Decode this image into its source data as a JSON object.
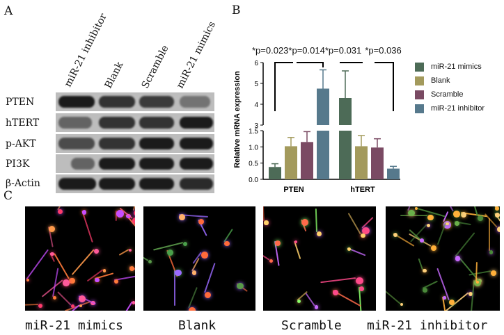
{
  "panels": {
    "a": "A",
    "b": "B",
    "c": "C"
  },
  "blot": {
    "lanes": [
      "miR-21 inhibitor",
      "Blank",
      "Scramble",
      "miR-21 mimics"
    ],
    "bands": [
      "PTEN",
      "hTERT",
      "p-AKT",
      "PI3K",
      "β-Actin"
    ]
  },
  "chart": {
    "pvalues": [
      "*p=0.023",
      "*p=0.014",
      "*p=0.031",
      "*p=0.036"
    ],
    "ylabel": "Relative mRNA expression",
    "categories": [
      "PTEN",
      "hTERT"
    ],
    "yticks_top": [
      "3",
      "4",
      "5",
      "6"
    ],
    "yticks_bottom": [
      "0.0",
      "0.5",
      "1.0",
      "1.5"
    ],
    "legend": [
      {
        "label": "miR-21 mimics",
        "color": "#4d6b57"
      },
      {
        "label": "Blank",
        "color": "#a39a5c"
      },
      {
        "label": "Scramble",
        "color": "#7a4a63"
      },
      {
        "label": "miR-21 inhibitor",
        "color": "#56798c"
      }
    ]
  },
  "chart_data": {
    "type": "bar",
    "categories": [
      "PTEN",
      "hTERT"
    ],
    "ylabel": "Relative mRNA expression",
    "y_axis_break": [
      1.5,
      3
    ],
    "series": [
      {
        "name": "miR-21 mimics",
        "values": [
          0.38,
          4.3
        ],
        "errors": [
          0.1,
          1.3
        ]
      },
      {
        "name": "Blank",
        "values": [
          1.02,
          1.02
        ],
        "errors": [
          0.27,
          0.33
        ]
      },
      {
        "name": "Scramble",
        "values": [
          1.15,
          0.98
        ],
        "errors": [
          0.32,
          0.27
        ]
      },
      {
        "name": "miR-21 inhibitor",
        "values": [
          4.75,
          0.33
        ],
        "errors": [
          0.9,
          0.07
        ]
      }
    ],
    "annotations": [
      "*p=0.023",
      "*p=0.014",
      "*p=0.031",
      "*p=0.036"
    ]
  },
  "micrographs": {
    "labels": [
      "miR-21 mimics",
      "Blank",
      "Scramble",
      "miR-21 inhibitor"
    ]
  }
}
